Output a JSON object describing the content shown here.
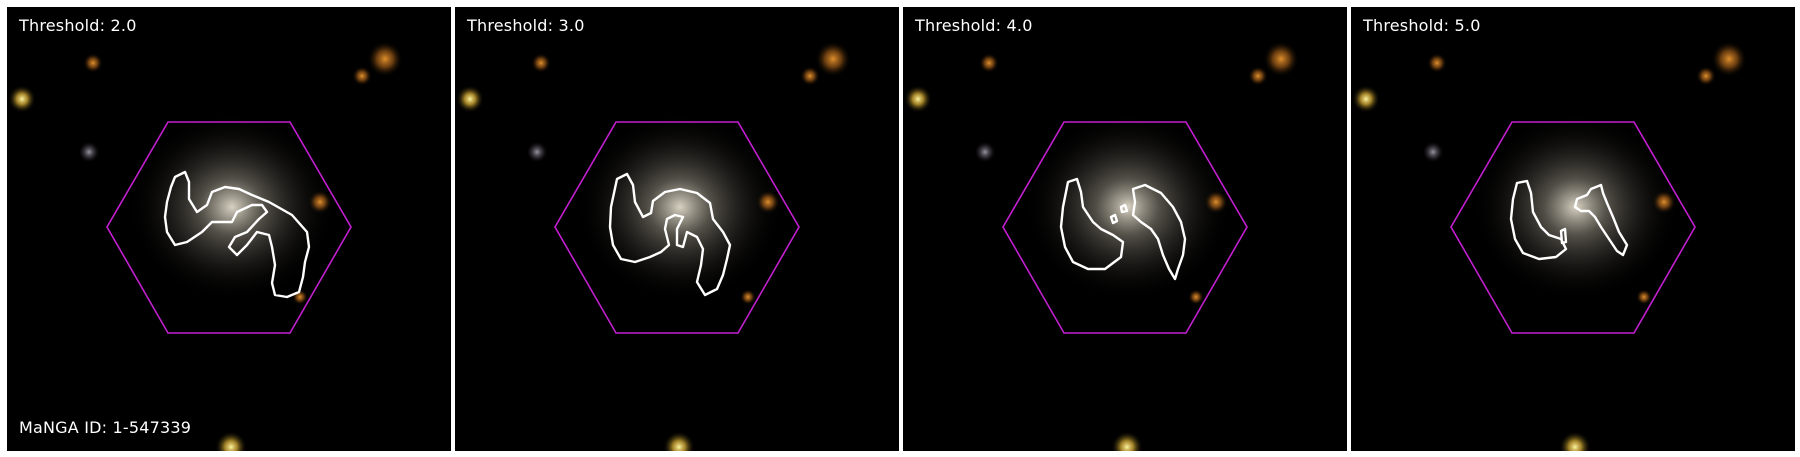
{
  "panels": [
    {
      "label": "Threshold: 2.0"
    },
    {
      "label": "Threshold: 3.0"
    },
    {
      "label": "Threshold: 4.0"
    },
    {
      "label": "Threshold: 5.0"
    }
  ],
  "manga_id_label": "MaNGA ID: 1-547339",
  "colors": {
    "hexagon": "#c21fd0",
    "contour": "#ffffff",
    "background": "#000000"
  }
}
